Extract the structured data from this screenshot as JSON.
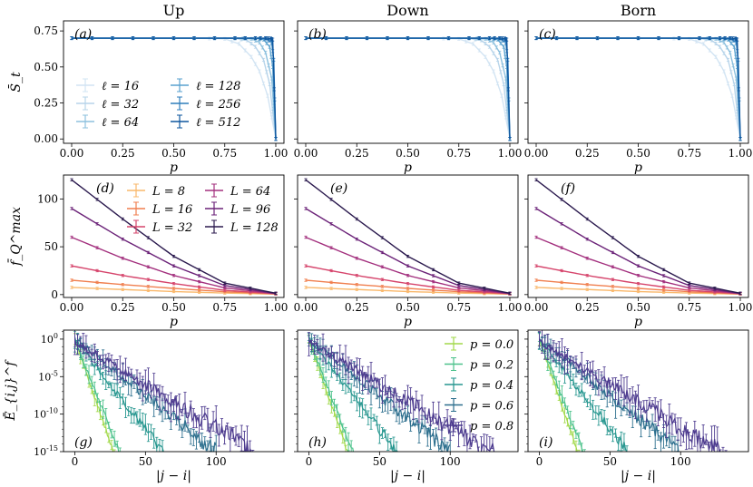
{
  "chart_data": {
    "type": "line",
    "column_titles": [
      "Up",
      "Down",
      "Born"
    ],
    "rows": [
      {
        "id": "S",
        "ylabel": "S̄_t",
        "xlabel": "p",
        "xlim": [
          -0.04,
          1.04
        ],
        "ylim": [
          -0.03,
          0.82
        ],
        "xticks": [
          0.0,
          0.25,
          0.5,
          0.75,
          1.0
        ],
        "xtick_labels": [
          "0.00",
          "0.25",
          "0.50",
          "0.75",
          "1.00"
        ],
        "yticks": [
          0.0,
          0.25,
          0.5,
          0.75
        ],
        "ytick_labels": [
          "0.00",
          "0.25",
          "0.50",
          "0.75"
        ],
        "yscale": "linear",
        "panel_labels": [
          "(a)",
          "(b)",
          "(c)"
        ],
        "legend": {
          "panel": 0,
          "position": "bottom-left",
          "columns": 2,
          "entries": [
            "ℓ = 16",
            "ℓ = 32",
            "ℓ = 64",
            "ℓ = 128",
            "ℓ = 256",
            "ℓ = 512"
          ]
        },
        "series": [
          {
            "name": "ℓ = 16",
            "color": "#d2e4f3",
            "x": [
              0,
              0.2,
              0.4,
              0.6,
              0.75,
              0.82,
              0.88,
              0.92,
              0.96,
              1.0
            ],
            "y": [
              0.7,
              0.7,
              0.7,
              0.7,
              0.695,
              0.66,
              0.57,
              0.47,
              0.3,
              0.0
            ]
          },
          {
            "name": "ℓ = 32",
            "color": "#b7d4ea",
            "x": [
              0,
              0.2,
              0.4,
              0.6,
              0.8,
              0.86,
              0.9,
              0.94,
              0.97,
              1.0
            ],
            "y": [
              0.7,
              0.7,
              0.7,
              0.7,
              0.698,
              0.685,
              0.64,
              0.55,
              0.38,
              0.0
            ]
          },
          {
            "name": "ℓ = 64",
            "color": "#8dc0de",
            "x": [
              0,
              0.2,
              0.4,
              0.6,
              0.8,
              0.88,
              0.92,
              0.95,
              0.98,
              1.0
            ],
            "y": [
              0.7,
              0.7,
              0.7,
              0.7,
              0.7,
              0.695,
              0.67,
              0.6,
              0.42,
              0.0
            ]
          },
          {
            "name": "ℓ = 128",
            "color": "#5aa2cf",
            "x": [
              0,
              0.2,
              0.4,
              0.6,
              0.8,
              0.9,
              0.94,
              0.97,
              0.985,
              1.0
            ],
            "y": [
              0.7,
              0.7,
              0.7,
              0.7,
              0.7,
              0.7,
              0.69,
              0.64,
              0.5,
              0.0
            ]
          },
          {
            "name": "ℓ = 256",
            "color": "#2f7ebc",
            "x": [
              0,
              0.2,
              0.4,
              0.6,
              0.8,
              0.9,
              0.95,
              0.98,
              0.99,
              1.0
            ],
            "y": [
              0.7,
              0.7,
              0.7,
              0.7,
              0.7,
              0.7,
              0.697,
              0.67,
              0.55,
              0.0
            ]
          },
          {
            "name": "ℓ = 512",
            "color": "#0e569e",
            "x": [
              0,
              0.2,
              0.4,
              0.6,
              0.8,
              0.9,
              0.95,
              0.975,
              0.985,
              1.0
            ],
            "y": [
              0.7,
              0.7,
              0.7,
              0.7,
              0.7,
              0.7,
              0.7,
              0.698,
              0.69,
              0.0
            ]
          }
        ]
      },
      {
        "id": "fQ",
        "ylabel": "f̄_Q^max",
        "xlabel": "p",
        "xlim": [
          -0.04,
          1.04
        ],
        "ylim": [
          -3,
          125
        ],
        "xticks": [
          0.0,
          0.25,
          0.5,
          0.75,
          1.0
        ],
        "xtick_labels": [
          "0.00",
          "0.25",
          "0.50",
          "0.75",
          "1.00"
        ],
        "yticks": [
          0,
          50,
          100
        ],
        "ytick_labels": [
          "0",
          "50",
          "100"
        ],
        "yscale": "linear",
        "panel_labels": [
          "(d)",
          "(e)",
          "(f)"
        ],
        "legend": {
          "panel": 0,
          "position": "top-right",
          "columns": 2,
          "entries": [
            "L = 8",
            "L = 16",
            "L = 32",
            "L = 64",
            "L = 96",
            "L = 128"
          ]
        },
        "series": [
          {
            "name": "L = 8",
            "color": "#f9b86c",
            "x": [
              0,
              0.25,
              0.5,
              0.75,
              1.0
            ],
            "y": [
              7.5,
              5.3,
              3.2,
              1.6,
              0.5
            ]
          },
          {
            "name": "L = 16",
            "color": "#f07f4f",
            "x": [
              0,
              0.25,
              0.5,
              0.75,
              1.0
            ],
            "y": [
              15,
              10.5,
              6.5,
              3.0,
              0.7
            ]
          },
          {
            "name": "L = 32",
            "color": "#d6456c",
            "x": [
              0,
              0.25,
              0.5,
              0.75,
              1.0
            ],
            "y": [
              30,
              20,
              11.5,
              4.5,
              0.9
            ]
          },
          {
            "name": "L = 64",
            "color": "#a3307e",
            "x": [
              0,
              0.25,
              0.5,
              0.75,
              1.0
            ],
            "y": [
              60,
              38,
              20,
              7.0,
              1.0
            ]
          },
          {
            "name": "L = 96",
            "color": "#6b2278",
            "x": [
              0,
              0.25,
              0.5,
              0.75,
              1.0
            ],
            "y": [
              90,
              58,
              30,
              9.5,
              1.2
            ]
          },
          {
            "name": "L = 128",
            "color": "#2b1a4e",
            "x": [
              0,
              0.25,
              0.5,
              0.75,
              1.0
            ],
            "y": [
              120,
              79,
              40,
              12,
              1.5
            ]
          }
        ]
      },
      {
        "id": "E",
        "ylabel": "Ē_{i,j}^f",
        "xlabel": "|j − i|",
        "xlim": [
          -8,
          148
        ],
        "ylim": [
          -15,
          1.2
        ],
        "xticks": [
          0,
          50,
          100
        ],
        "xtick_labels": [
          "0",
          "50",
          "100"
        ],
        "yticks": [
          0,
          -5,
          -10,
          -15
        ],
        "ytick_labels": [
          "10^0",
          "10^-5",
          "10^-10",
          "10^-15"
        ],
        "yscale": "log",
        "panel_labels": [
          "(g)",
          "(h)",
          "(i)"
        ],
        "legend": {
          "panel": 1,
          "position": "top-right",
          "columns": 1,
          "entries": [
            "p = 0.0",
            "p = 0.2",
            "p = 0.4",
            "p = 0.6",
            "p = 0.8"
          ]
        },
        "series": [
          {
            "name": "p = 0.0",
            "color": "#a2d94a",
            "log10_at_0": 0,
            "decay_per_site": 0.55,
            "xmax": 28
          },
          {
            "name": "p = 0.2",
            "color": "#4cc28b",
            "log10_at_0": 0,
            "decay_per_site": 0.48,
            "xmax": 32
          },
          {
            "name": "p = 0.4",
            "color": "#26968f",
            "log10_at_0": 0,
            "decay_per_site": 0.24,
            "xmax": 63
          },
          {
            "name": "p = 0.6",
            "color": "#2d6f8e",
            "log10_at_0": 0,
            "decay_per_site": 0.15,
            "xmax": 100
          },
          {
            "name": "p = 0.8",
            "color": "#4d3b8f",
            "log10_at_0": -0.3,
            "decay_per_site": 0.115,
            "xmax": 135
          }
        ]
      }
    ]
  }
}
